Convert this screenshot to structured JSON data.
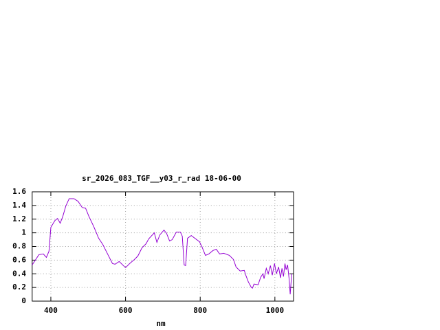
{
  "chart_data": {
    "type": "line",
    "title": "sr_2026_083_TGF__y03_r_rad 18-06-00",
    "x_label": "nm",
    "x": [
      350,
      368,
      380,
      388,
      395,
      400,
      411,
      418,
      425,
      432,
      440,
      449,
      462,
      473,
      484,
      493,
      502,
      515,
      528,
      539,
      552,
      565,
      572,
      583,
      600,
      611,
      624,
      633,
      644,
      655,
      662,
      677,
      684,
      692,
      703,
      710,
      718,
      725,
      736,
      747,
      752,
      757,
      761,
      766,
      776,
      798,
      805,
      814,
      823,
      834,
      843,
      852,
      863,
      878,
      889,
      896,
      907,
      918,
      922,
      929,
      937,
      940,
      944,
      955,
      962,
      968,
      971,
      977,
      982,
      988,
      993,
      999,
      1004,
      1010,
      1015,
      1019,
      1023,
      1027,
      1030,
      1034,
      1038,
      1041,
      1045
    ],
    "values": [
      0.53,
      0.68,
      0.69,
      0.64,
      0.73,
      1.08,
      1.18,
      1.21,
      1.14,
      1.24,
      1.39,
      1.5,
      1.5,
      1.46,
      1.37,
      1.36,
      1.24,
      1.09,
      0.92,
      0.83,
      0.69,
      0.55,
      0.54,
      0.58,
      0.49,
      0.55,
      0.61,
      0.66,
      0.78,
      0.84,
      0.91,
      1.0,
      0.86,
      0.97,
      1.04,
      0.99,
      0.88,
      0.9,
      1.01,
      1.01,
      0.95,
      0.53,
      0.52,
      0.92,
      0.96,
      0.87,
      0.79,
      0.67,
      0.69,
      0.74,
      0.76,
      0.69,
      0.7,
      0.67,
      0.61,
      0.5,
      0.44,
      0.45,
      0.38,
      0.28,
      0.2,
      0.19,
      0.25,
      0.24,
      0.35,
      0.4,
      0.33,
      0.48,
      0.4,
      0.52,
      0.38,
      0.55,
      0.4,
      0.5,
      0.34,
      0.48,
      0.36,
      0.55,
      0.46,
      0.53,
      0.33,
      0.1,
      0.4
    ],
    "color": "#9400d3",
    "xlim": [
      350,
      1050
    ],
    "xticks": [
      400,
      600,
      800,
      1000
    ],
    "ylim": [
      0,
      1.6
    ],
    "yticks": [
      0,
      0.2,
      0.4,
      0.6,
      0.8,
      1,
      1.2,
      1.4,
      1.6
    ],
    "grid": true
  }
}
